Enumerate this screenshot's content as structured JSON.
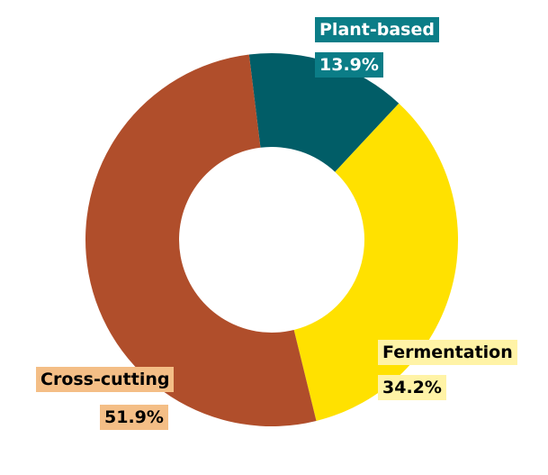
{
  "chart_data": {
    "type": "pie",
    "variant": "donut",
    "start_angle_deg": -7,
    "slices": [
      {
        "name": "Plant-based",
        "value": 13.9,
        "value_label": "13.9%",
        "color": "#015d67",
        "label_bg": "#0b7d87",
        "label_text_color": "#ffffff"
      },
      {
        "name": "Fermentation",
        "value": 34.2,
        "value_label": "34.2%",
        "color": "#ffe100",
        "label_bg": "#fff3a6",
        "label_text_color": "#000000"
      },
      {
        "name": "Cross-cutting",
        "value": 51.9,
        "value_label": "51.9%",
        "color": "#b04e2b",
        "label_bg": "#f4be86",
        "label_text_color": "#000000"
      }
    ],
    "legend": "none"
  }
}
